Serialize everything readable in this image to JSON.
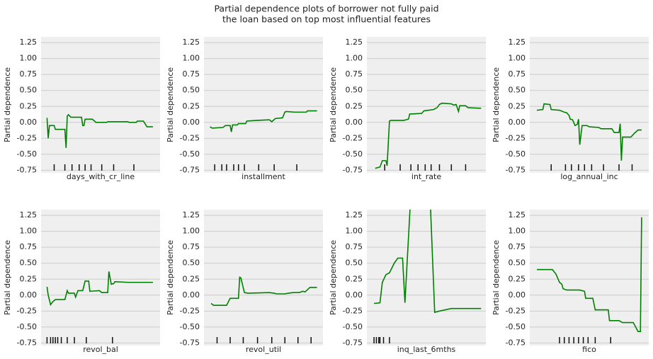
{
  "title": [
    "Partial dependence plots of borrower not fully paid",
    "the loan based on top most influential features"
  ],
  "chart_data": [
    {
      "type": "line",
      "xlabel": "days_with_cr_line",
      "ylabel": "Partial dependence",
      "color": "#008000",
      "grid": true,
      "xlim": [
        0,
        100
      ],
      "ylim": [
        -0.79,
        1.34
      ],
      "yticks": [
        -0.75,
        {
          "value": -0.5,
          "label": "-0.50"
        },
        -0.25,
        {
          "value": 0,
          "label": "0.00"
        },
        0.25,
        {
          "value": 0.5,
          "label": "0.50"
        },
        0.75,
        {
          "value": 1,
          "label": "1.00"
        },
        1.25
      ],
      "x": [
        5,
        6,
        7,
        11,
        12,
        20,
        21,
        22,
        23,
        25,
        34,
        35,
        36,
        37,
        43,
        45,
        46,
        55,
        56,
        73,
        74,
        80,
        81,
        86,
        89,
        94
      ],
      "values": [
        0.07,
        -0.25,
        -0.05,
        -0.05,
        -0.11,
        -0.11,
        -0.4,
        0.1,
        0.12,
        0.08,
        0.08,
        -0.05,
        -0.05,
        0.05,
        0.05,
        0.02,
        0,
        0,
        0.01,
        0.01,
        0,
        0,
        0.02,
        0.02,
        -0.07,
        -0.07
      ],
      "deciles": [
        11,
        20,
        26,
        32,
        37,
        42,
        51,
        61,
        78
      ]
    },
    {
      "type": "line",
      "xlabel": "installment",
      "ylabel": "Partial dependence",
      "color": "#008000",
      "grid": true,
      "xlim": [
        0,
        100
      ],
      "ylim": [
        -0.79,
        1.34
      ],
      "yticks": [
        -0.75,
        {
          "value": -0.5,
          "label": "-0.50"
        },
        -0.25,
        {
          "value": 0,
          "label": "0.00"
        },
        0.25,
        {
          "value": 0.5,
          "label": "0.50"
        },
        0.75,
        {
          "value": 1,
          "label": "1.00"
        },
        1.25
      ],
      "x": [
        5,
        7,
        16,
        18,
        22,
        23,
        24,
        28,
        29,
        35,
        36,
        44,
        55,
        57,
        60,
        66,
        68,
        69,
        76,
        86,
        87,
        95
      ],
      "values": [
        -0.07,
        -0.09,
        -0.08,
        -0.05,
        -0.05,
        -0.15,
        -0.04,
        -0.04,
        -0.02,
        -0.02,
        0.02,
        0.03,
        0.04,
        0.01,
        0.06,
        0.07,
        0.16,
        0.17,
        0.16,
        0.16,
        0.18,
        0.18
      ],
      "deciles": [
        9,
        15,
        19,
        25,
        29,
        34,
        46,
        59,
        78
      ]
    },
    {
      "type": "line",
      "xlabel": "int_rate",
      "ylabel": "Partial dependence",
      "color": "#008000",
      "grid": true,
      "xlim": [
        0,
        100
      ],
      "ylim": [
        -0.79,
        1.34
      ],
      "yticks": [
        -0.75,
        {
          "value": -0.5,
          "label": "-0.50"
        },
        -0.25,
        {
          "value": 0,
          "label": "0.00"
        },
        0.25,
        {
          "value": 0.5,
          "label": "0.50"
        },
        0.75,
        {
          "value": 1,
          "label": "1.00"
        },
        1.25
      ],
      "x": [
        7,
        11,
        13,
        16,
        17,
        19,
        20,
        31,
        35,
        36,
        46,
        48,
        56,
        59,
        61,
        63,
        71,
        73,
        75,
        77,
        78,
        83,
        85,
        96
      ],
      "values": [
        -0.72,
        -0.7,
        -0.6,
        -0.6,
        -0.68,
        0.02,
        0.03,
        0.03,
        0.05,
        0.13,
        0.14,
        0.18,
        0.2,
        0.23,
        0.28,
        0.3,
        0.29,
        0.27,
        0.28,
        0.17,
        0.26,
        0.26,
        0.23,
        0.22
      ],
      "deciles": [
        15,
        28,
        37,
        43,
        49,
        54,
        61,
        71,
        83
      ]
    },
    {
      "type": "line",
      "xlabel": "log_annual_inc",
      "ylabel": "Partial dependence",
      "color": "#008000",
      "grid": true,
      "xlim": [
        0,
        100
      ],
      "ylim": [
        -0.79,
        1.34
      ],
      "yticks": [
        -0.75,
        {
          "value": -0.5,
          "label": "-0.50"
        },
        -0.25,
        {
          "value": 0,
          "label": "0.00"
        },
        0.25,
        {
          "value": 0.5,
          "label": "0.50"
        },
        0.75,
        {
          "value": 1,
          "label": "1.00"
        },
        1.25
      ],
      "x": [
        6,
        11,
        12,
        17,
        18,
        25,
        29,
        31,
        33,
        34,
        36,
        38,
        40,
        41,
        42,
        44,
        48,
        50,
        58,
        60,
        69,
        71,
        75,
        76,
        77,
        78,
        85,
        88,
        91,
        94
      ],
      "values": [
        0.19,
        0.2,
        0.29,
        0.28,
        0.2,
        0.19,
        0.16,
        0.15,
        0.11,
        0.05,
        0.04,
        -0.05,
        -0.03,
        0.05,
        -0.35,
        -0.05,
        -0.05,
        -0.07,
        -0.08,
        -0.1,
        -0.1,
        -0.16,
        -0.16,
        -0.02,
        -0.6,
        -0.23,
        -0.23,
        -0.17,
        -0.12,
        -0.12
      ],
      "deciles": [
        18,
        30,
        35,
        41,
        46,
        52,
        62,
        75,
        86
      ]
    },
    {
      "type": "line",
      "xlabel": "revol_bal",
      "ylabel": "Partial dependence",
      "color": "#008000",
      "grid": true,
      "xlim": [
        0,
        100
      ],
      "ylim": [
        -0.79,
        1.34
      ],
      "yticks": [
        -0.75,
        {
          "value": -0.5,
          "label": "-0.50"
        },
        -0.25,
        {
          "value": 0,
          "label": "0.00"
        },
        0.25,
        {
          "value": 0.5,
          "label": "0.50"
        },
        0.75,
        {
          "value": 1,
          "label": "1.00"
        },
        1.25
      ],
      "x": [
        5,
        6,
        8,
        10,
        12,
        20,
        22,
        23,
        28,
        29,
        31,
        35,
        37,
        40,
        41,
        49,
        51,
        56,
        57,
        59,
        61,
        62,
        73,
        94
      ],
      "values": [
        0.13,
        0,
        -0.15,
        -0.1,
        -0.07,
        -0.07,
        0.07,
        0.03,
        0.03,
        -0.03,
        0.07,
        0.07,
        0.22,
        0.22,
        0.06,
        0.07,
        0.04,
        0.04,
        0.37,
        0.17,
        0.18,
        0.21,
        0.2,
        0.2
      ],
      "deciles": [
        5,
        8,
        10,
        12,
        14,
        17,
        22,
        28,
        38,
        60
      ]
    },
    {
      "type": "line",
      "xlabel": "revol_util",
      "ylabel": "Partial dependence",
      "color": "#008000",
      "grid": true,
      "xlim": [
        0,
        100
      ],
      "ylim": [
        -0.79,
        1.34
      ],
      "yticks": [
        -0.75,
        {
          "value": -0.5,
          "label": "-0.50"
        },
        -0.25,
        {
          "value": 0,
          "label": "0.00"
        },
        0.25,
        {
          "value": 0.5,
          "label": "0.50"
        },
        0.75,
        {
          "value": 1,
          "label": "1.00"
        },
        1.25
      ],
      "x": [
        6,
        8,
        19,
        22,
        29,
        30,
        31,
        34,
        37,
        55,
        59,
        61,
        68,
        71,
        75,
        80,
        83,
        85,
        89,
        95
      ],
      "values": [
        -0.13,
        -0.16,
        -0.16,
        -0.05,
        -0.05,
        0.28,
        0.27,
        0.04,
        0.03,
        0.04,
        0.03,
        0.02,
        0.02,
        0.03,
        0.04,
        0.04,
        0.06,
        0.05,
        0.12,
        0.12
      ],
      "deciles": [
        11,
        22,
        33,
        45,
        57,
        68,
        79,
        90
      ]
    },
    {
      "type": "line",
      "xlabel": "inq_last_6mths",
      "ylabel": "Partial dependence",
      "color": "#008000",
      "grid": true,
      "xlim": [
        0,
        100
      ],
      "ylim": [
        -0.79,
        1.34
      ],
      "yticks": [
        -0.75,
        {
          "value": -0.5,
          "label": "-0.50"
        },
        -0.25,
        {
          "value": 0,
          "label": "0.00"
        },
        0.25,
        {
          "value": 0.5,
          "label": "0.50"
        },
        0.75,
        {
          "value": 1,
          "label": "1.00"
        },
        1.25
      ],
      "x": [
        6,
        11,
        13,
        16,
        19,
        23,
        26,
        30,
        32,
        37,
        53,
        57,
        61,
        71,
        96
      ],
      "values": [
        -0.13,
        -0.12,
        0.2,
        0.32,
        0.35,
        0.5,
        0.58,
        0.58,
        -0.12,
        1.6,
        1.6,
        -0.27,
        -0.25,
        -0.21,
        -0.21
      ],
      "deciles": [
        6,
        8,
        10,
        11,
        14,
        19
      ]
    },
    {
      "type": "line",
      "xlabel": "fico",
      "ylabel": "Partial dependence",
      "color": "#008000",
      "grid": true,
      "xlim": [
        0,
        100
      ],
      "ylim": [
        -0.79,
        1.34
      ],
      "yticks": [
        -0.75,
        {
          "value": -0.5,
          "label": "-0.50"
        },
        -0.25,
        {
          "value": 0,
          "label": "0.00"
        },
        0.25,
        {
          "value": 0.5,
          "label": "0.50"
        },
        0.75,
        {
          "value": 1,
          "label": "1.00"
        },
        1.25
      ],
      "x": [
        6,
        19,
        22,
        25,
        27,
        28,
        31,
        42,
        46,
        47,
        53,
        55,
        66,
        67,
        75,
        78,
        87,
        91,
        93,
        94
      ],
      "values": [
        0.4,
        0.4,
        0.33,
        0.2,
        0.17,
        0.1,
        0.08,
        0.08,
        0.06,
        -0.05,
        -0.05,
        -0.23,
        -0.23,
        -0.4,
        -0.4,
        -0.43,
        -0.43,
        -0.57,
        -0.57,
        1.22
      ],
      "deciles": [
        25,
        29,
        33,
        37,
        41,
        45,
        49,
        55,
        68
      ]
    }
  ]
}
